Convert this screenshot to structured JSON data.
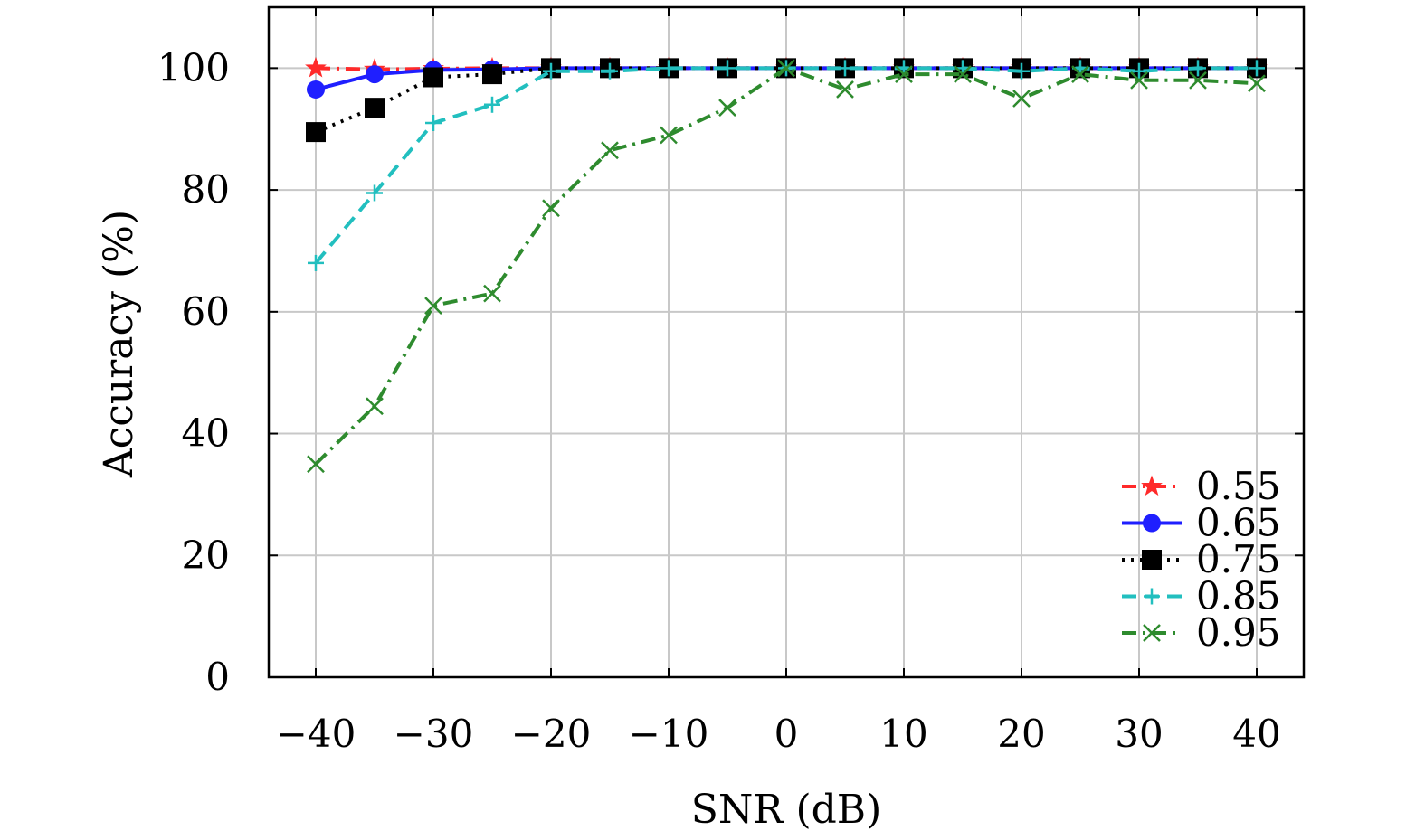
{
  "chart_data": {
    "type": "line",
    "title": "",
    "xlabel": "SNR (dB)",
    "ylabel": "Accuracy (%)",
    "xlim": [
      -44,
      44
    ],
    "ylim": [
      0,
      110
    ],
    "grid": true,
    "legend_position": "bottom-right",
    "xticks": [
      -40,
      -30,
      -20,
      -10,
      0,
      10,
      20,
      30,
      40
    ],
    "xtick_labels": [
      "−40",
      "−30",
      "−20",
      "−10",
      "0",
      "10",
      "20",
      "30",
      "40"
    ],
    "yticks": [
      0,
      20,
      40,
      60,
      80,
      100
    ],
    "ytick_labels": [
      "0",
      "20",
      "40",
      "60",
      "80",
      "100"
    ],
    "x": [
      -40,
      -35,
      -30,
      -25,
      -20,
      -15,
      -10,
      -5,
      0,
      5,
      10,
      15,
      20,
      25,
      30,
      35,
      40
    ],
    "series": [
      {
        "name": "0.55",
        "color": "#ff2a2a",
        "dash": "dashdot",
        "marker": "star",
        "values": [
          100,
          99.8,
          99.9,
          100,
          100,
          100,
          100,
          100,
          100,
          100,
          100,
          100,
          100,
          100,
          100,
          100,
          100
        ]
      },
      {
        "name": "0.65",
        "color": "#1f1fff",
        "dash": "solid",
        "marker": "circle",
        "values": [
          96.5,
          99,
          99.7,
          99.8,
          100,
          100,
          100,
          100,
          100,
          100,
          100,
          100,
          100,
          100,
          100,
          100,
          100
        ]
      },
      {
        "name": "0.75",
        "color": "#000000",
        "dash": "dotted",
        "marker": "square",
        "values": [
          89.5,
          93.5,
          98.5,
          99,
          100,
          100,
          100,
          100,
          100,
          100,
          100,
          100,
          100,
          100,
          100,
          100,
          100
        ]
      },
      {
        "name": "0.85",
        "color": "#22bfbf",
        "dash": "dashed",
        "marker": "plus",
        "values": [
          68,
          79.5,
          91,
          94,
          99.5,
          99.5,
          100,
          100,
          100,
          100,
          100,
          100,
          99.5,
          100,
          99.5,
          100,
          100
        ]
      },
      {
        "name": "0.95",
        "color": "#2e8b2e",
        "dash": "dashdot",
        "marker": "x",
        "values": [
          35,
          44.5,
          61,
          63,
          77,
          86.5,
          89,
          93.5,
          100,
          96.5,
          99,
          99,
          95,
          99,
          98,
          98,
          97.5
        ]
      }
    ]
  }
}
